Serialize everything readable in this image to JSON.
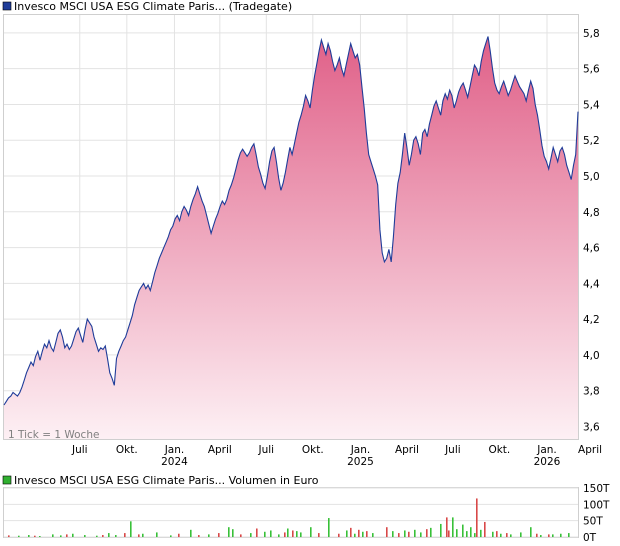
{
  "chart_data": [
    {
      "type": "area",
      "title": "Invesco MSCI USA ESG Climate Paris... (Tradegate)",
      "legend_color": "#1f3c99",
      "line_color": "#1f3c99",
      "fill_top_color": "#e06088",
      "fill_bottom_color": "#fdf0f4",
      "note": "1 Tick = 1 Woche",
      "ylim": [
        3.53,
        5.9
      ],
      "y_ticks": [
        3.6,
        3.8,
        4.0,
        4.2,
        4.4,
        4.6,
        4.8,
        5.0,
        5.2,
        5.4,
        5.6,
        5.8
      ],
      "y_tick_labels": [
        "3,6",
        "3,8",
        "4,0",
        "4,2",
        "4,4",
        "4,6",
        "4,8",
        "5,0",
        "5,2",
        "5,4",
        "5,6",
        "5,8"
      ],
      "grid": true,
      "x_ticks": [
        {
          "label": "Juli",
          "year": "",
          "pos": 0.132
        },
        {
          "label": "Okt.",
          "year": "",
          "pos": 0.214
        },
        {
          "label": "Jan.",
          "year": "2024",
          "pos": 0.297
        },
        {
          "label": "April",
          "year": "",
          "pos": 0.376
        },
        {
          "label": "Juli",
          "year": "",
          "pos": 0.457
        },
        {
          "label": "Okt.",
          "year": "",
          "pos": 0.538
        },
        {
          "label": "Jan.",
          "year": "2025",
          "pos": 0.621
        },
        {
          "label": "April",
          "year": "",
          "pos": 0.702
        },
        {
          "label": "Juli",
          "year": "",
          "pos": 0.782
        },
        {
          "label": "Okt.",
          "year": "",
          "pos": 0.863
        },
        {
          "label": "Jan.",
          "year": "2026",
          "pos": 0.946
        },
        {
          "label": "April",
          "year": "",
          "pos": 1.021
        }
      ],
      "series": [
        {
          "values": [
            3.72,
            3.74,
            3.76,
            3.77,
            3.79,
            3.78,
            3.77,
            3.79,
            3.82,
            3.86,
            3.9,
            3.93,
            3.96,
            3.94,
            3.99,
            4.02,
            3.97,
            4.02,
            4.06,
            4.04,
            4.08,
            4.04,
            4.02,
            4.07,
            4.12,
            4.14,
            4.1,
            4.04,
            4.06,
            4.03,
            4.05,
            4.09,
            4.13,
            4.15,
            4.11,
            4.07,
            4.14,
            4.2,
            4.18,
            4.16,
            4.1,
            4.06,
            4.02,
            4.04,
            4.03,
            4.05,
            3.98,
            3.9,
            3.87,
            3.83,
            3.98,
            4.02,
            4.05,
            4.08,
            4.1,
            4.14,
            4.18,
            4.22,
            4.28,
            4.32,
            4.36,
            4.38,
            4.4,
            4.37,
            4.39,
            4.36,
            4.41,
            4.46,
            4.5,
            4.54,
            4.57,
            4.6,
            4.63,
            4.66,
            4.7,
            4.72,
            4.76,
            4.78,
            4.75,
            4.8,
            4.83,
            4.81,
            4.78,
            4.83,
            4.87,
            4.9,
            4.94,
            4.9,
            4.86,
            4.83,
            4.78,
            4.73,
            4.68,
            4.72,
            4.76,
            4.79,
            4.83,
            4.86,
            4.84,
            4.87,
            4.92,
            4.95,
            4.99,
            5.04,
            5.09,
            5.13,
            5.15,
            5.13,
            5.11,
            5.13,
            5.16,
            5.18,
            5.12,
            5.05,
            5.01,
            4.96,
            4.93,
            5.0,
            5.08,
            5.14,
            5.16,
            5.08,
            4.99,
            4.92,
            4.96,
            5.02,
            5.09,
            5.16,
            5.12,
            5.18,
            5.24,
            5.3,
            5.34,
            5.39,
            5.45,
            5.42,
            5.38,
            5.48,
            5.56,
            5.63,
            5.7,
            5.76,
            5.72,
            5.68,
            5.74,
            5.7,
            5.64,
            5.59,
            5.62,
            5.66,
            5.6,
            5.56,
            5.62,
            5.68,
            5.74,
            5.7,
            5.66,
            5.68,
            5.62,
            5.5,
            5.38,
            5.24,
            5.12,
            5.08,
            5.04,
            5.0,
            4.95,
            4.7,
            4.57,
            4.52,
            4.54,
            4.59,
            4.52,
            4.66,
            4.84,
            4.96,
            5.02,
            5.12,
            5.24,
            5.16,
            5.06,
            5.12,
            5.2,
            5.22,
            5.18,
            5.12,
            5.24,
            5.26,
            5.22,
            5.29,
            5.34,
            5.39,
            5.42,
            5.38,
            5.34,
            5.42,
            5.46,
            5.43,
            5.48,
            5.45,
            5.38,
            5.42,
            5.47,
            5.5,
            5.52,
            5.48,
            5.44,
            5.5,
            5.56,
            5.62,
            5.6,
            5.56,
            5.64,
            5.7,
            5.74,
            5.78,
            5.7,
            5.6,
            5.52,
            5.48,
            5.46,
            5.5,
            5.53,
            5.49,
            5.45,
            5.48,
            5.52,
            5.56,
            5.53,
            5.5,
            5.48,
            5.46,
            5.42,
            5.48,
            5.53,
            5.49,
            5.4,
            5.34,
            5.26,
            5.17,
            5.11,
            5.08,
            5.04,
            5.1,
            5.16,
            5.12,
            5.08,
            5.14,
            5.16,
            5.12,
            5.06,
            5.02,
            4.98,
            5.06,
            5.12,
            5.36
          ]
        }
      ]
    },
    {
      "type": "bar",
      "title": "Invesco MSCI USA ESG Climate Paris... Volumen in Euro",
      "legend_color": "#30b030",
      "ylim": [
        0,
        150
      ],
      "y_ticks": [
        0,
        50,
        100,
        150
      ],
      "y_tick_labels": [
        "0T",
        "50T",
        "100T",
        "150T"
      ],
      "grid": true,
      "up_color": "#38c038",
      "down_color": "#d84848",
      "series": [
        {
          "name": "up",
          "x": [
            18,
            28,
            39,
            52,
            60,
            72,
            84,
            96,
            108,
            115,
            130,
            142,
            156,
            170,
            190,
            208,
            228,
            232,
            250,
            264,
            270,
            278,
            287,
            296,
            300,
            310,
            328,
            346,
            354,
            362,
            372,
            392,
            404,
            414,
            420,
            430,
            440,
            452,
            456,
            462,
            466,
            470,
            474,
            480,
            492,
            500,
            510,
            520,
            530,
            540,
            552,
            560,
            568
          ],
          "values": [
            4,
            6,
            3,
            8,
            5,
            10,
            6,
            4,
            12,
            6,
            48,
            10,
            14,
            5,
            22,
            8,
            30,
            24,
            12,
            16,
            20,
            8,
            26,
            18,
            14,
            30,
            58,
            20,
            10,
            16,
            12,
            18,
            20,
            22,
            14,
            28,
            40,
            60,
            24,
            38,
            18,
            30,
            12,
            22,
            16,
            10,
            8,
            14,
            30,
            6,
            8,
            10,
            12
          ]
        },
        {
          "name": "down",
          "x": [
            8,
            34,
            66,
            102,
            124,
            138,
            178,
            198,
            218,
            240,
            256,
            284,
            292,
            318,
            338,
            350,
            358,
            366,
            386,
            398,
            408,
            426,
            446,
            448,
            476,
            484,
            496,
            506,
            536,
            548
          ],
          "values": [
            5,
            4,
            8,
            6,
            12,
            8,
            10,
            6,
            12,
            8,
            26,
            14,
            20,
            12,
            10,
            28,
            22,
            18,
            30,
            12,
            16,
            24,
            60,
            20,
            118,
            46,
            18,
            12,
            10,
            8
          ]
        }
      ]
    }
  ]
}
